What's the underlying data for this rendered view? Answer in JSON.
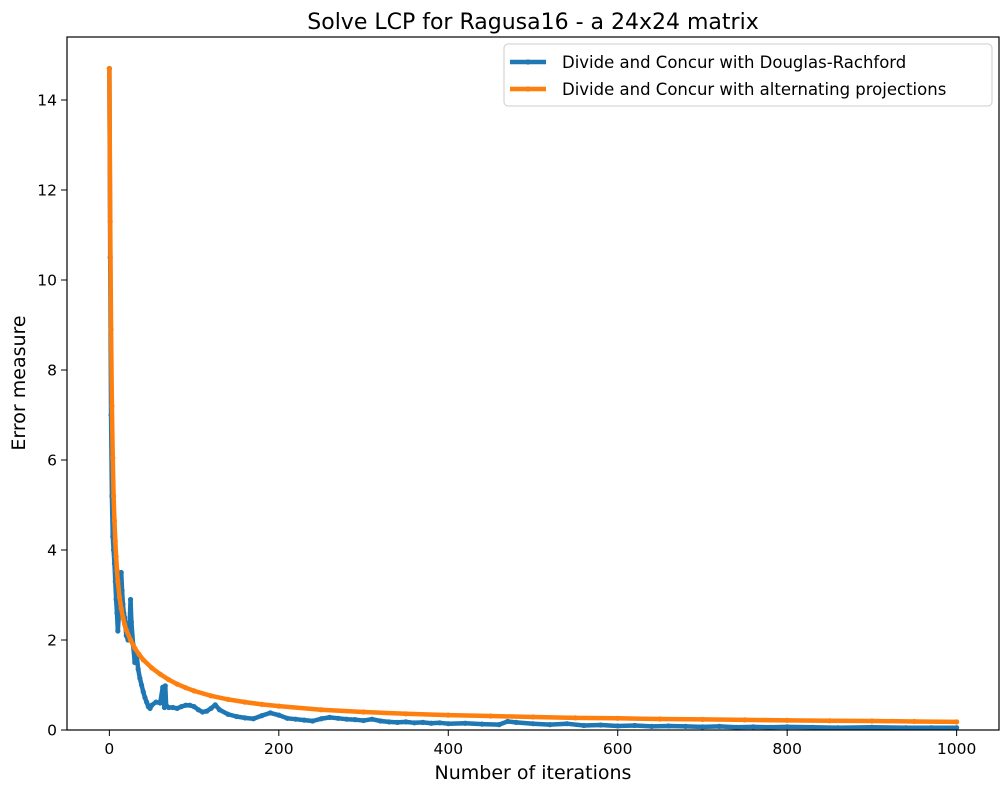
{
  "chart_data": {
    "type": "line",
    "title": "Solve LCP for Ragusa16 - a 24x24 matrix",
    "xlabel": "Number of iterations",
    "ylabel": "Error measure",
    "xlim": [
      -50,
      1050
    ],
    "ylim": [
      0,
      15.4
    ],
    "xticks": [
      0,
      200,
      400,
      600,
      800,
      1000
    ],
    "yticks": [
      0,
      2,
      4,
      6,
      8,
      10,
      12,
      14
    ],
    "grid": false,
    "legend_position": "top-right",
    "series": [
      {
        "name": "Divide and Concur with Douglas-Rachford",
        "color": "#1f77b4",
        "points": [
          [
            0,
            14.7
          ],
          [
            1,
            10.5
          ],
          [
            2,
            7.0
          ],
          [
            3,
            5.2
          ],
          [
            4,
            4.3
          ],
          [
            5,
            4.0
          ],
          [
            6,
            3.7
          ],
          [
            7,
            3.3
          ],
          [
            8,
            2.9
          ],
          [
            9,
            2.6
          ],
          [
            10,
            2.2
          ],
          [
            11,
            2.5
          ],
          [
            12,
            2.9
          ],
          [
            13,
            3.3
          ],
          [
            14,
            3.5
          ],
          [
            15,
            3.1
          ],
          [
            16,
            2.8
          ],
          [
            17,
            2.6
          ],
          [
            18,
            2.5
          ],
          [
            19,
            2.3
          ],
          [
            20,
            2.1
          ],
          [
            22,
            2.0
          ],
          [
            24,
            2.4
          ],
          [
            25,
            2.9
          ],
          [
            26,
            2.4
          ],
          [
            28,
            1.9
          ],
          [
            30,
            1.5
          ],
          [
            32,
            1.7
          ],
          [
            34,
            1.35
          ],
          [
            36,
            1.15
          ],
          [
            38,
            1.0
          ],
          [
            40,
            0.85
          ],
          [
            42,
            0.72
          ],
          [
            44,
            0.62
          ],
          [
            46,
            0.52
          ],
          [
            48,
            0.48
          ],
          [
            50,
            0.55
          ],
          [
            55,
            0.62
          ],
          [
            60,
            0.6
          ],
          [
            63,
            0.95
          ],
          [
            65,
            0.5
          ],
          [
            66,
            0.98
          ],
          [
            67,
            0.55
          ],
          [
            70,
            0.5
          ],
          [
            75,
            0.5
          ],
          [
            80,
            0.48
          ],
          [
            85,
            0.52
          ],
          [
            90,
            0.55
          ],
          [
            95,
            0.55
          ],
          [
            100,
            0.52
          ],
          [
            105,
            0.45
          ],
          [
            110,
            0.4
          ],
          [
            115,
            0.42
          ],
          [
            120,
            0.48
          ],
          [
            125,
            0.56
          ],
          [
            130,
            0.45
          ],
          [
            140,
            0.35
          ],
          [
            150,
            0.3
          ],
          [
            160,
            0.27
          ],
          [
            170,
            0.25
          ],
          [
            180,
            0.32
          ],
          [
            190,
            0.38
          ],
          [
            200,
            0.33
          ],
          [
            210,
            0.26
          ],
          [
            220,
            0.24
          ],
          [
            230,
            0.22
          ],
          [
            240,
            0.2
          ],
          [
            250,
            0.25
          ],
          [
            260,
            0.28
          ],
          [
            270,
            0.26
          ],
          [
            280,
            0.24
          ],
          [
            290,
            0.23
          ],
          [
            300,
            0.21
          ],
          [
            310,
            0.24
          ],
          [
            320,
            0.2
          ],
          [
            330,
            0.18
          ],
          [
            340,
            0.17
          ],
          [
            350,
            0.18
          ],
          [
            360,
            0.16
          ],
          [
            370,
            0.17
          ],
          [
            380,
            0.15
          ],
          [
            390,
            0.16
          ],
          [
            400,
            0.14
          ],
          [
            420,
            0.15
          ],
          [
            440,
            0.13
          ],
          [
            460,
            0.12
          ],
          [
            470,
            0.19
          ],
          [
            480,
            0.17
          ],
          [
            500,
            0.14
          ],
          [
            520,
            0.12
          ],
          [
            540,
            0.14
          ],
          [
            560,
            0.1
          ],
          [
            580,
            0.11
          ],
          [
            600,
            0.09
          ],
          [
            620,
            0.1
          ],
          [
            640,
            0.08
          ],
          [
            660,
            0.09
          ],
          [
            680,
            0.08
          ],
          [
            700,
            0.07
          ],
          [
            720,
            0.08
          ],
          [
            740,
            0.06
          ],
          [
            760,
            0.07
          ],
          [
            780,
            0.06
          ],
          [
            800,
            0.07
          ],
          [
            830,
            0.06
          ],
          [
            860,
            0.05
          ],
          [
            900,
            0.06
          ],
          [
            940,
            0.05
          ],
          [
            970,
            0.05
          ],
          [
            1000,
            0.05
          ]
        ]
      },
      {
        "name": "Divide and Concur with alternating projections",
        "color": "#ff7f0e",
        "points": [
          [
            0,
            14.7
          ],
          [
            1,
            11.3
          ],
          [
            2,
            8.9
          ],
          [
            3,
            7.2
          ],
          [
            4,
            6.05
          ],
          [
            5,
            5.2
          ],
          [
            6,
            4.65
          ],
          [
            7,
            4.2
          ],
          [
            8,
            3.85
          ],
          [
            9,
            3.55
          ],
          [
            10,
            3.3
          ],
          [
            12,
            2.95
          ],
          [
            14,
            2.7
          ],
          [
            16,
            2.5
          ],
          [
            18,
            2.35
          ],
          [
            20,
            2.22
          ],
          [
            25,
            2.0
          ],
          [
            30,
            1.82
          ],
          [
            35,
            1.68
          ],
          [
            40,
            1.56
          ],
          [
            50,
            1.38
          ],
          [
            60,
            1.24
          ],
          [
            70,
            1.12
          ],
          [
            80,
            1.02
          ],
          [
            90,
            0.94
          ],
          [
            100,
            0.87
          ],
          [
            120,
            0.76
          ],
          [
            140,
            0.68
          ],
          [
            160,
            0.62
          ],
          [
            180,
            0.57
          ],
          [
            200,
            0.53
          ],
          [
            250,
            0.45
          ],
          [
            300,
            0.4
          ],
          [
            350,
            0.36
          ],
          [
            400,
            0.33
          ],
          [
            450,
            0.31
          ],
          [
            500,
            0.29
          ],
          [
            550,
            0.27
          ],
          [
            600,
            0.26
          ],
          [
            650,
            0.245
          ],
          [
            700,
            0.235
          ],
          [
            750,
            0.225
          ],
          [
            800,
            0.215
          ],
          [
            850,
            0.205
          ],
          [
            900,
            0.2
          ],
          [
            950,
            0.19
          ],
          [
            1000,
            0.18
          ]
        ]
      }
    ]
  }
}
